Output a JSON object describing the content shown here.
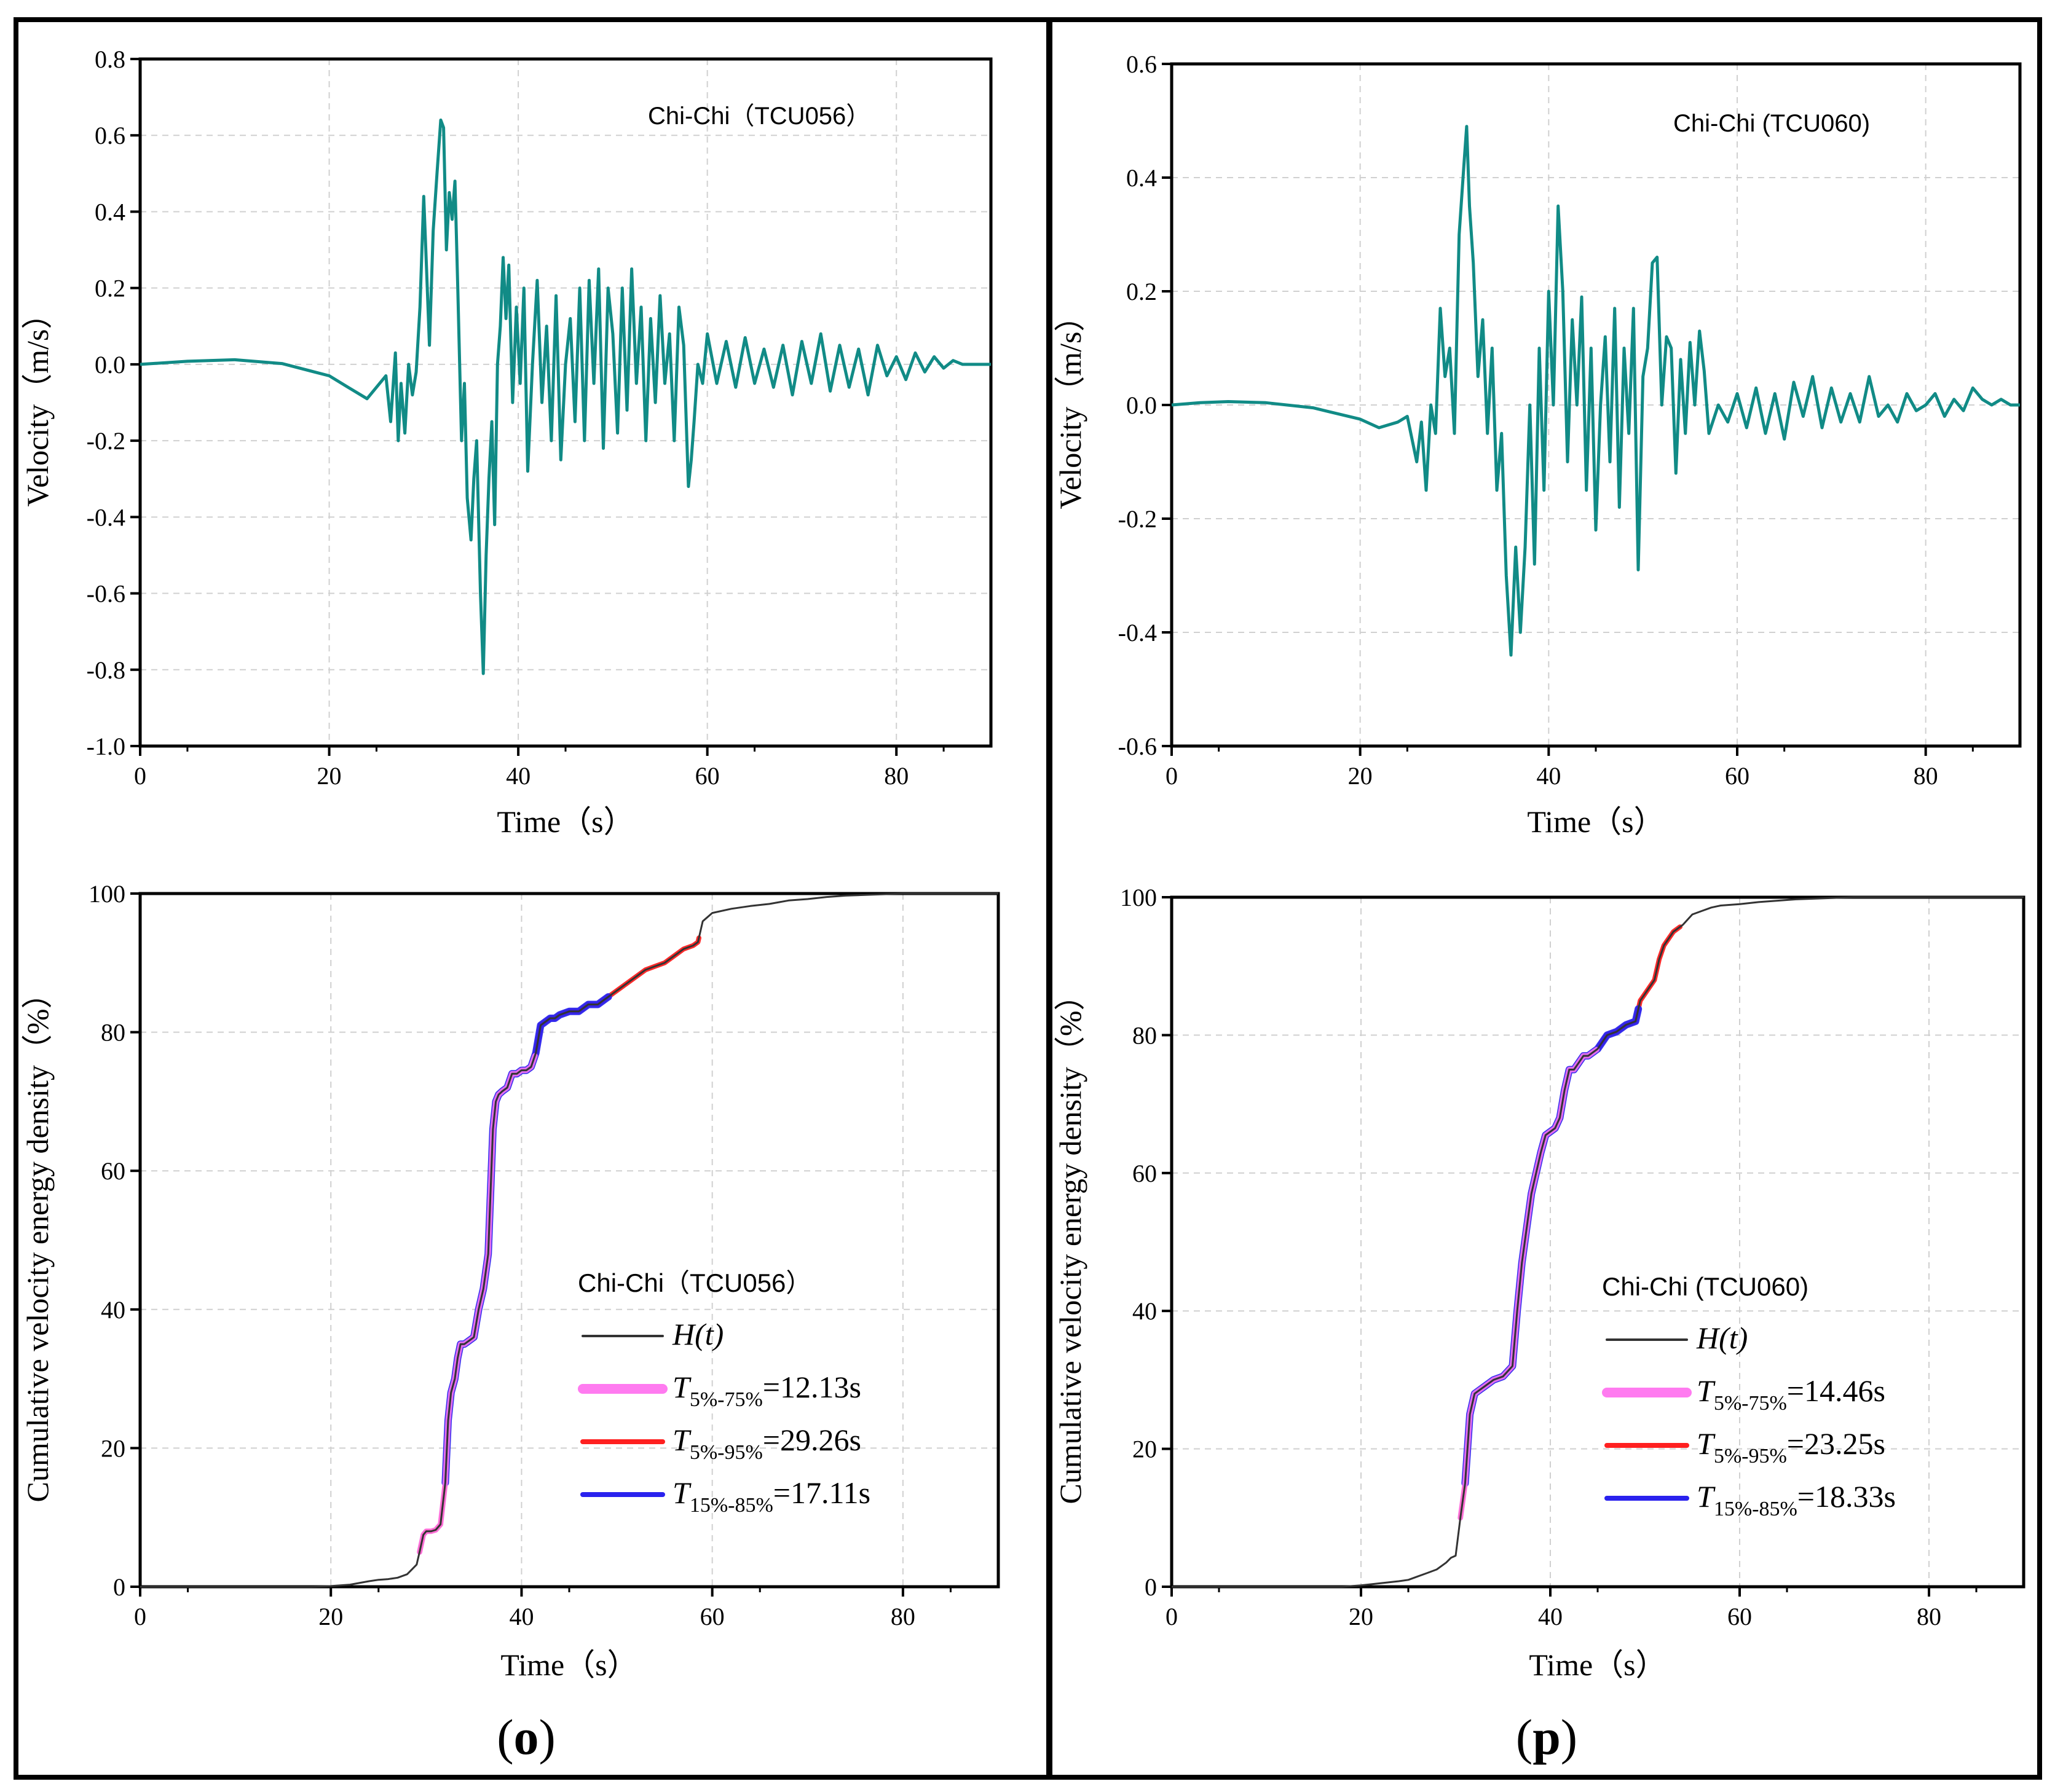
{
  "panels": [
    {
      "label": "o",
      "station": "Chi-Chi（TCU056）",
      "velocity_chart": {
        "type": "line",
        "annotation": "Chi-Chi（TCU056）",
        "xlabel": "Time（s）",
        "ylabel": "Velocity（m/s）",
        "xlim": [
          0,
          90
        ],
        "ylim": [
          -1.0,
          0.8
        ],
        "xticks": [
          0,
          20,
          40,
          60,
          80
        ],
        "yticks": [
          -1.0,
          -0.8,
          -0.6,
          -0.4,
          -0.2,
          0.0,
          0.2,
          0.4,
          0.6,
          0.8
        ],
        "ytick_labels": [
          "-1.0",
          "-0.8",
          "-0.6",
          "-0.4",
          "-0.2",
          "0.0",
          "0.2",
          "0.4",
          "0.6",
          "0.8"
        ],
        "color": "#118b86",
        "series": [
          {
            "name": "velocity",
            "x": [
              0,
              5,
              10,
              15,
              20,
              22,
              24,
              25,
              26,
              26.5,
              27,
              27.3,
              27.6,
              28,
              28.4,
              28.8,
              29.2,
              29.6,
              30,
              30.3,
              30.6,
              31,
              31.4,
              31.8,
              32.1,
              32.4,
              32.7,
              33,
              33.3,
              33.6,
              34,
              34.3,
              34.6,
              35,
              35.3,
              35.6,
              36,
              36.3,
              36.6,
              36.9,
              37.2,
              37.5,
              37.8,
              38.1,
              38.4,
              38.7,
              39,
              39.4,
              39.8,
              40.2,
              40.6,
              41,
              41.5,
              42,
              42.5,
              43,
              43.5,
              44,
              44.5,
              45,
              45.5,
              46,
              46.5,
              47,
              47.5,
              48,
              48.5,
              49,
              49.5,
              50,
              50.5,
              51,
              51.5,
              52,
              52.5,
              53,
              53.5,
              54,
              54.5,
              55,
              55.5,
              56,
              56.5,
              57,
              57.5,
              58,
              58.3,
              58.6,
              59,
              59.5,
              60,
              61,
              62,
              63,
              64,
              65,
              66,
              67,
              68,
              69,
              70,
              71,
              72,
              73,
              74,
              75,
              76,
              77,
              78,
              79,
              80,
              81,
              82,
              83,
              84,
              85,
              86,
              87,
              88,
              89,
              90
            ],
            "y": [
              0,
              0.008,
              0.012,
              0.002,
              -0.03,
              -0.06,
              -0.09,
              -0.06,
              -0.03,
              -0.15,
              0.03,
              -0.2,
              -0.05,
              -0.18,
              0.0,
              -0.08,
              -0.02,
              0.15,
              0.44,
              0.25,
              0.05,
              0.35,
              0.5,
              0.64,
              0.62,
              0.3,
              0.45,
              0.38,
              0.48,
              0.2,
              -0.2,
              -0.05,
              -0.35,
              -0.46,
              -0.3,
              -0.2,
              -0.6,
              -0.81,
              -0.5,
              -0.3,
              -0.15,
              -0.42,
              0.0,
              0.1,
              0.28,
              0.12,
              0.26,
              -0.1,
              0.15,
              -0.05,
              0.2,
              -0.28,
              0.0,
              0.22,
              -0.1,
              0.1,
              -0.2,
              0.18,
              -0.25,
              0.0,
              0.12,
              -0.15,
              0.2,
              -0.2,
              0.22,
              -0.05,
              0.25,
              -0.22,
              0.2,
              0.08,
              -0.18,
              0.2,
              -0.12,
              0.25,
              -0.05,
              0.15,
              -0.2,
              0.12,
              -0.1,
              0.18,
              -0.05,
              0.08,
              -0.2,
              0.15,
              0.05,
              -0.32,
              -0.25,
              -0.15,
              0.0,
              -0.05,
              0.08,
              -0.05,
              0.06,
              -0.06,
              0.07,
              -0.05,
              0.04,
              -0.06,
              0.05,
              -0.08,
              0.06,
              -0.05,
              0.08,
              -0.07,
              0.05,
              -0.06,
              0.04,
              -0.08,
              0.05,
              -0.03,
              0.02,
              -0.04,
              0.03,
              -0.02,
              0.02,
              -0.01,
              0.01,
              0.0,
              0.0,
              0.0,
              0.0
            ]
          }
        ]
      },
      "energy_chart": {
        "type": "line",
        "xlabel": "Time（s）",
        "ylabel": "Cumulative velocity energy density（%）",
        "xlim": [
          0,
          90
        ],
        "ylim": [
          0,
          100
        ],
        "xticks": [
          0,
          20,
          40,
          60,
          80
        ],
        "yticks": [
          0,
          20,
          40,
          60,
          80,
          100
        ],
        "legend_title": "Chi-Chi（TCU056）",
        "legend": [
          {
            "key": "H",
            "label": "H(t)",
            "color": "#333333"
          },
          {
            "key": "T575",
            "label": "T",
            "sub": "5%-75%",
            "value": "=12.13s",
            "color": "#ff7bf0"
          },
          {
            "key": "T595",
            "label": "T",
            "sub": "5%-95%",
            "value": "=29.26s",
            "color": "#ff2020"
          },
          {
            "key": "T1585",
            "label": "T",
            "sub": "15%-85%",
            "value": "=17.11s",
            "color": "#2a22ee"
          }
        ],
        "series": [
          {
            "name": "H(t)",
            "x": [
              0,
              10,
              18,
              20,
              22,
              24,
              25,
              26,
              27,
              28,
              28.5,
              29,
              29.3,
              29.7,
              30,
              30.5,
              31,
              31.5,
              32,
              32.3,
              32.6,
              33,
              33.3,
              33.6,
              34,
              34.5,
              35,
              35.5,
              36,
              36.5,
              37,
              37.3,
              37.6,
              38,
              38.5,
              39,
              39.5,
              40,
              40.5,
              41,
              41.5,
              42,
              42.5,
              43,
              43.5,
              44,
              45,
              46,
              47,
              48,
              49,
              50,
              51,
              52,
              53,
              54,
              55,
              56,
              57,
              58,
              58.5,
              59,
              60,
              62,
              64,
              66,
              68,
              70,
              72,
              74,
              76,
              78,
              80,
              82,
              84,
              86,
              88,
              90
            ],
            "y": [
              0,
              0,
              0,
              0.1,
              0.3,
              0.8,
              1.0,
              1.1,
              1.3,
              1.8,
              2.5,
              3.2,
              5,
              7.5,
              8,
              8,
              8.2,
              9,
              15,
              24,
              28,
              30,
              33,
              35,
              35,
              35.5,
              36,
              40,
              43,
              48,
              66,
              70,
              71,
              71.5,
              72,
              74,
              74,
              74.5,
              74.5,
              75,
              77,
              81,
              81.5,
              82,
              82,
              82.5,
              83,
              83,
              84,
              84,
              85,
              86,
              87,
              88,
              89,
              89.5,
              90,
              91,
              92,
              92.5,
              93,
              96,
              97.2,
              97.8,
              98.2,
              98.5,
              99,
              99.2,
              99.5,
              99.7,
              99.8,
              99.9,
              100,
              100,
              100,
              100,
              100,
              100
            ]
          }
        ],
        "highlights": [
          {
            "key": "T595",
            "x_start": 29.3,
            "x_end": 58.6
          },
          {
            "key": "T1585",
            "x_start": 32.0,
            "x_end": 49.1
          },
          {
            "key": "T575",
            "x_start": 29.3,
            "x_end": 41.4
          }
        ]
      }
    },
    {
      "label": "p",
      "station": "Chi-Chi (TCU060)",
      "velocity_chart": {
        "type": "line",
        "annotation": "Chi-Chi (TCU060)",
        "xlabel": "Time（s）",
        "ylabel": "Velocity（m/s）",
        "xlim": [
          0,
          90
        ],
        "ylim": [
          -0.6,
          0.6
        ],
        "xticks": [
          0,
          20,
          40,
          60,
          80
        ],
        "yticks": [
          -0.6,
          -0.4,
          -0.2,
          0.0,
          0.2,
          0.4,
          0.6
        ],
        "ytick_labels": [
          "-0.6",
          "-0.4",
          "-0.2",
          "0.0",
          "0.2",
          "0.4",
          "0.6"
        ],
        "color": "#118b86",
        "series": [
          {
            "name": "velocity",
            "x": [
              0,
              3,
              6,
              10,
              15,
              20,
              22,
              24,
              25,
              26,
              26.5,
              27,
              27.5,
              28,
              28.5,
              29,
              29.5,
              30,
              30.5,
              31,
              31.3,
              31.6,
              32,
              32.5,
              33,
              33.5,
              34,
              34.5,
              35,
              35.5,
              36,
              36.5,
              37,
              37.5,
              38,
              38.5,
              39,
              39.5,
              40,
              40.5,
              41,
              41.5,
              42,
              42.5,
              43,
              43.5,
              44,
              44.5,
              45,
              45.5,
              46,
              46.5,
              47,
              47.5,
              48,
              48.5,
              49,
              49.5,
              50,
              50.5,
              51,
              51.5,
              52,
              52.5,
              53,
              53.5,
              54,
              54.5,
              55,
              55.5,
              56,
              56.5,
              57,
              58,
              59,
              60,
              61,
              62,
              63,
              64,
              65,
              66,
              67,
              68,
              69,
              70,
              71,
              72,
              73,
              74,
              75,
              76,
              77,
              78,
              79,
              80,
              81,
              82,
              83,
              84,
              85,
              86,
              87,
              88,
              89,
              90
            ],
            "y": [
              0,
              0.004,
              0.006,
              0.004,
              -0.005,
              -0.025,
              -0.04,
              -0.03,
              -0.02,
              -0.1,
              -0.03,
              -0.15,
              0.0,
              -0.05,
              0.17,
              0.05,
              0.1,
              -0.05,
              0.3,
              0.42,
              0.49,
              0.35,
              0.25,
              0.05,
              0.15,
              -0.05,
              0.1,
              -0.15,
              -0.05,
              -0.3,
              -0.44,
              -0.25,
              -0.4,
              -0.25,
              0.0,
              -0.28,
              0.1,
              -0.15,
              0.2,
              0.0,
              0.35,
              0.2,
              -0.1,
              0.15,
              0.0,
              0.19,
              -0.15,
              0.1,
              -0.22,
              0.0,
              0.12,
              -0.1,
              0.17,
              -0.18,
              0.1,
              -0.05,
              0.17,
              -0.29,
              0.05,
              0.1,
              0.25,
              0.26,
              0.0,
              0.12,
              0.1,
              -0.12,
              0.08,
              -0.05,
              0.11,
              0.0,
              0.13,
              0.06,
              -0.05,
              0.0,
              -0.03,
              0.02,
              -0.04,
              0.03,
              -0.05,
              0.02,
              -0.06,
              0.04,
              -0.02,
              0.05,
              -0.04,
              0.03,
              -0.03,
              0.02,
              -0.03,
              0.05,
              -0.02,
              0.0,
              -0.03,
              0.02,
              -0.01,
              0.0,
              0.02,
              -0.02,
              0.01,
              -0.01,
              0.03,
              0.01,
              0.0,
              0.01,
              0.0,
              0.0
            ]
          }
        ]
      },
      "energy_chart": {
        "type": "line",
        "xlabel": "Time（s）",
        "ylabel": "Cumulative velocity energy density（%）",
        "xlim": [
          0,
          90
        ],
        "ylim": [
          0,
          100
        ],
        "xticks": [
          0,
          20,
          40,
          60,
          80
        ],
        "yticks": [
          0,
          20,
          40,
          60,
          80,
          100
        ],
        "legend_title": "Chi-Chi (TCU060)",
        "legend": [
          {
            "key": "H",
            "label": "H(t)",
            "color": "#333333"
          },
          {
            "key": "T575",
            "label": "T",
            "sub": "5%-75%",
            "value": "=14.46s",
            "color": "#ff7bf0"
          },
          {
            "key": "T595",
            "label": "T",
            "sub": "5%-95%",
            "value": "=23.25s",
            "color": "#ff2020"
          },
          {
            "key": "T1585",
            "label": "T",
            "sub": "15%-85%",
            "value": "=18.33s",
            "color": "#2a22ee"
          }
        ],
        "series": [
          {
            "name": "H(t)",
            "x": [
              0,
              10,
              18,
              20,
              22,
              24,
              25,
              26,
              27,
              28,
              29,
              29.5,
              30,
              30.5,
              31,
              31.5,
              32,
              32.5,
              33,
              33.5,
              34,
              35,
              36,
              36.5,
              37,
              37.5,
              38,
              38.5,
              39,
              39.5,
              40,
              40.5,
              41,
              41.5,
              42,
              42.5,
              43,
              43.5,
              44,
              44.5,
              45,
              46,
              47,
              48,
              49,
              49.5,
              50,
              50.5,
              51,
              51.5,
              52,
              52.5,
              53,
              54,
              55,
              56,
              57,
              58,
              60,
              62,
              64,
              66,
              68,
              70,
              72,
              74,
              76,
              78,
              80,
              82,
              84,
              86,
              88,
              90
            ],
            "y": [
              0,
              0,
              0,
              0.2,
              0.5,
              0.8,
              1.0,
              1.5,
              2.0,
              2.5,
              3.5,
              4.2,
              4.5,
              10,
              15,
              25,
              28,
              28.5,
              29,
              29.5,
              30,
              30.5,
              32,
              40,
              47,
              52,
              57,
              60,
              63,
              65.5,
              66,
              66.5,
              68,
              72,
              75,
              75,
              76,
              77,
              77,
              77.5,
              78,
              80,
              80.5,
              81.5,
              82,
              85,
              86,
              87,
              88,
              91,
              93,
              94,
              95,
              96,
              97.5,
              98,
              98.5,
              98.8,
              99,
              99.3,
              99.5,
              99.7,
              99.8,
              99.9,
              100,
              100,
              100,
              100,
              100,
              100,
              100,
              100,
              100,
              100
            ]
          }
        ],
        "highlights": [
          {
            "key": "T595",
            "x_start": 30.5,
            "x_end": 53.7
          },
          {
            "key": "T1585",
            "x_start": 31.0,
            "x_end": 49.3
          },
          {
            "key": "T575",
            "x_start": 30.5,
            "x_end": 44.9
          }
        ]
      }
    }
  ]
}
